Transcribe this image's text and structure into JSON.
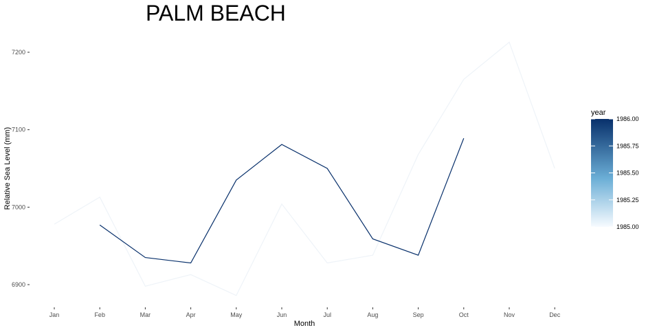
{
  "chart_data": {
    "type": "line",
    "title": "PALM BEACH",
    "xlabel": "Month",
    "ylabel": "Relative Sea Level (mm)",
    "categories": [
      "Jan",
      "Feb",
      "Mar",
      "Apr",
      "May",
      "Jun",
      "Jul",
      "Aug",
      "Sep",
      "Oct",
      "Nov",
      "Dec"
    ],
    "ylim": [
      6875,
      7215
    ],
    "yticks": [
      6900,
      7000,
      7100,
      7200
    ],
    "series": [
      {
        "year": 1985,
        "color": "#f7fbff",
        "values": [
          6978,
          7013,
          6898,
          6913,
          6886,
          7004,
          6928,
          6938,
          7068,
          7165,
          7213,
          7050
        ]
      },
      {
        "year": 1986,
        "color": "#08306b",
        "values": [
          null,
          6977,
          6935,
          6928,
          7035,
          7081,
          7050,
          6959,
          6938,
          7089,
          null,
          null
        ]
      }
    ],
    "legend": {
      "title": "year",
      "position": "right",
      "labels": [
        "1986.00",
        "1985.75",
        "1985.50",
        "1985.25",
        "1985.00"
      ],
      "gradient_top": "#08306b",
      "gradient_mid": "#6baed6",
      "gradient_bottom": "#f7fbff"
    },
    "grid": false
  }
}
